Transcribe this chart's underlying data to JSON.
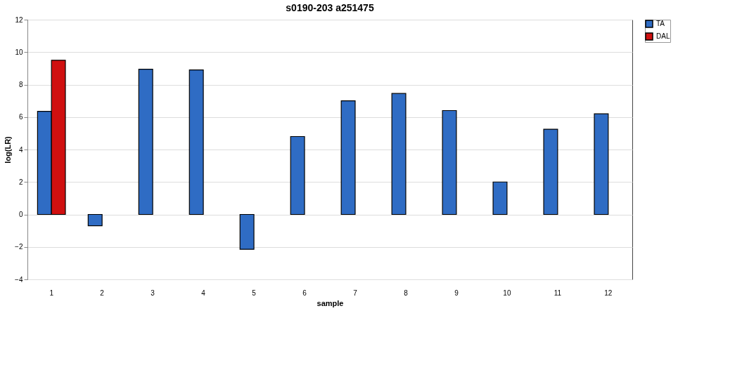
{
  "chart_data": {
    "type": "bar",
    "title": "s0190-203 a251475",
    "xlabel": "sample",
    "ylabel": "log(LR)",
    "categories": [
      "1",
      "2",
      "3",
      "4",
      "5",
      "6",
      "7",
      "8",
      "9",
      "10",
      "11",
      "12"
    ],
    "series": [
      {
        "name": "TA",
        "color": "#2f6cc4",
        "values": [
          6.35,
          -0.7,
          8.95,
          8.9,
          -2.15,
          4.8,
          7.0,
          7.45,
          6.4,
          2.0,
          5.25,
          6.2
        ]
      },
      {
        "name": "DAL",
        "color": "#d01010",
        "values": [
          9.5,
          null,
          null,
          null,
          null,
          null,
          null,
          null,
          null,
          null,
          null,
          null
        ]
      }
    ],
    "ylim": [
      -4,
      12
    ],
    "yticks": [
      -4,
      -2,
      0,
      2,
      4,
      6,
      8,
      10,
      12
    ],
    "grid": "y",
    "legend": "right"
  }
}
